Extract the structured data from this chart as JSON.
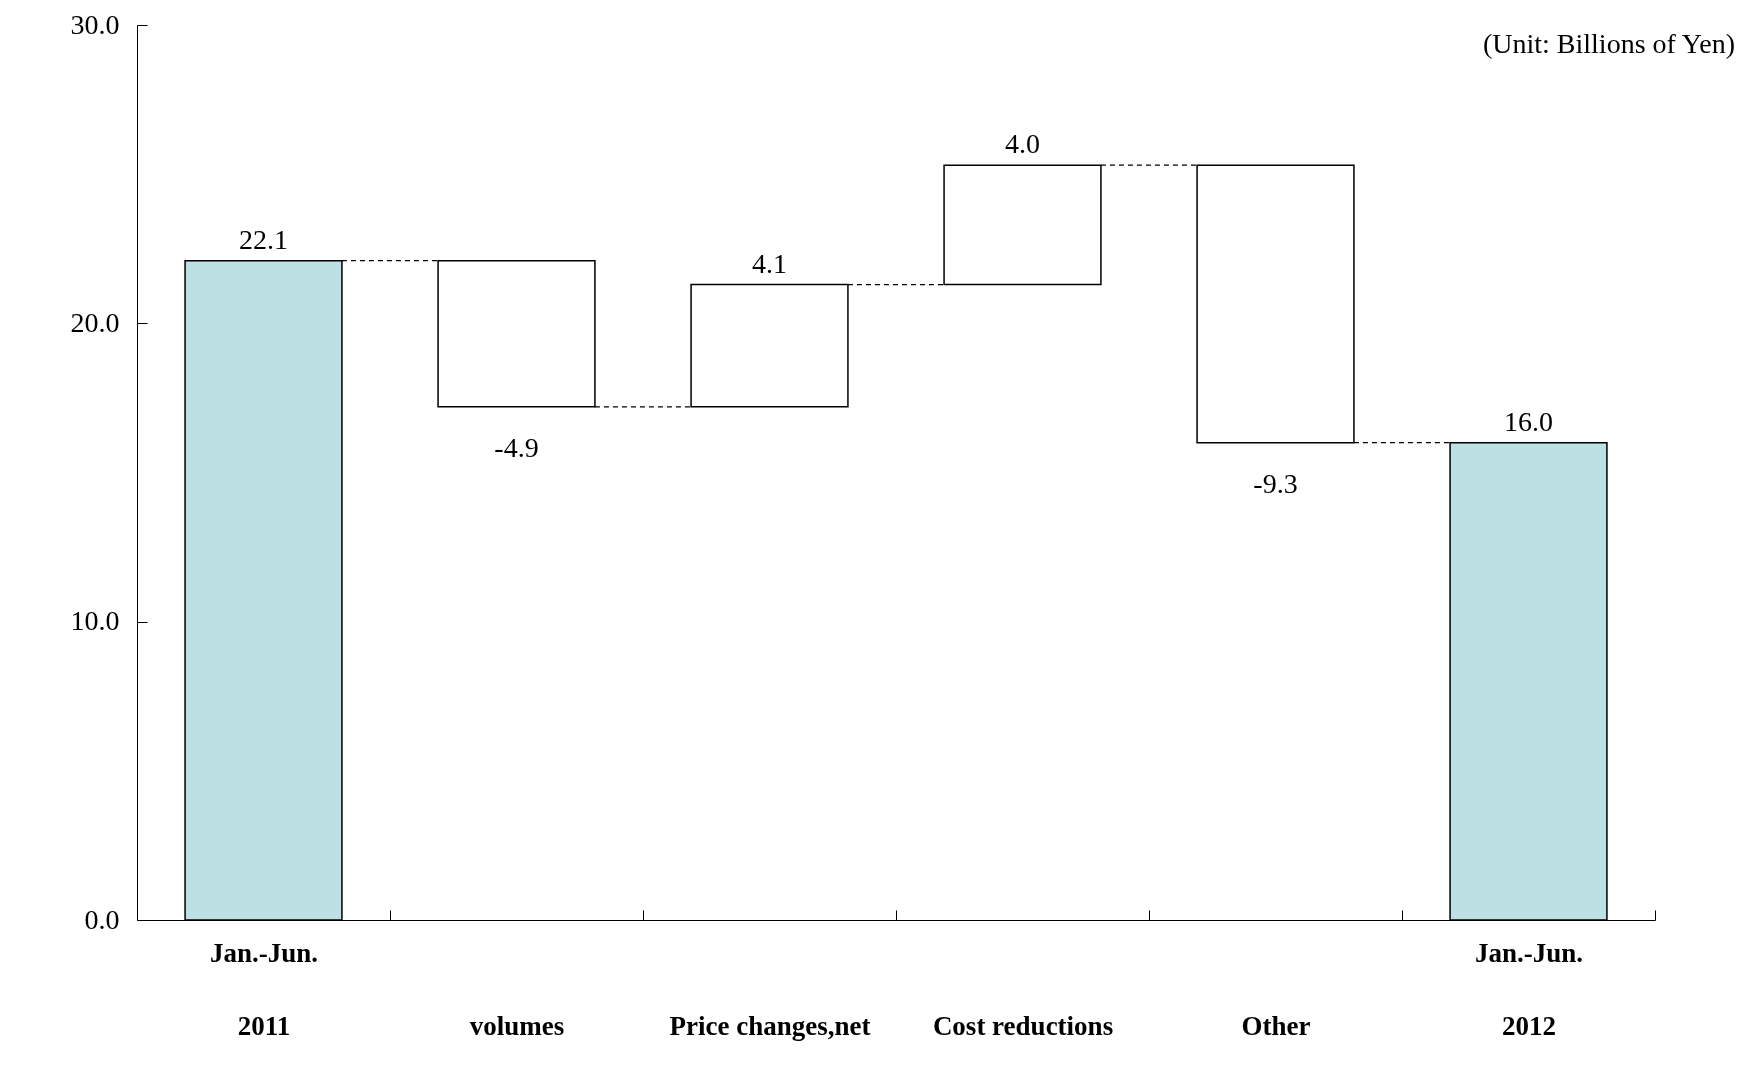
{
  "chart_data": {
    "type": "bar",
    "categories": [
      "Jan.-Jun.\n2011",
      "volumes",
      "Price changes,net",
      "Cost reductions",
      "Other",
      "Jan.-Jun.\n2012"
    ],
    "values": [
      22.1,
      -4.9,
      4.1,
      4.0,
      -9.3,
      16.0
    ],
    "base": [
      0,
      22.1,
      17.2,
      21.3,
      25.3,
      0
    ],
    "colors": [
      "#bce0e3",
      "#ffffff",
      "#ffffff",
      "#ffffff",
      "#ffffff",
      "#bce0e3"
    ],
    "value_labels": [
      "22.1",
      "-4.9",
      "4.1",
      "4.0",
      "-9.3",
      "16.0"
    ],
    "ylim": [
      0,
      30
    ],
    "yticks": [
      {
        "value": 0,
        "label": "0.0"
      },
      {
        "value": 10,
        "label": "10.0"
      },
      {
        "value": 20,
        "label": "20.0"
      },
      {
        "value": 30,
        "label": "30.0"
      }
    ],
    "annotations": [
      "(Unit: Billions of Yen)"
    ],
    "grid": false
  }
}
